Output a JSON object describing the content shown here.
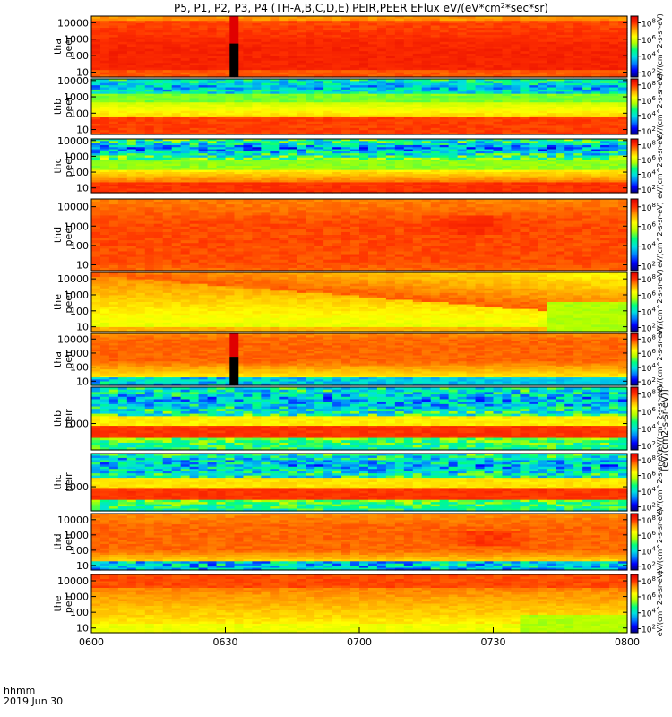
{
  "chart_data": {
    "type": "heatmap",
    "title": "P5, P1, P2, P3, P4 (TH-A,B,C,D,E) PEIR,PEER EFlux eV/(eV*cm2*sec*sr)",
    "title_parts": {
      "main": "P5, P1, P2, P3, P4 (TH-A,B,C,D,E) PEIR,PEER EFlux eV/(eV*cm",
      "sup": "2",
      "tail": "*sec*sr)"
    },
    "x_axis": {
      "label": "hhmm",
      "date": "2019 Jun 30",
      "ticks": [
        "0600",
        "0630",
        "0700",
        "0730",
        "0800"
      ],
      "range": [
        "06:00",
        "08:00"
      ]
    },
    "colorbar": {
      "units_label": "eV/(cm^2-s-sr-eV)",
      "outer_label": "[eV/(cm2-s-sr-eV)]",
      "ticks": [
        "10^2",
        "10^4",
        "10^6",
        "10^8"
      ],
      "exponents": [
        2,
        4,
        6,
        8
      ],
      "range_log10": [
        1.5,
        8.8
      ],
      "colormap": [
        "#000080",
        "#0000ff",
        "#0080ff",
        "#00e0e0",
        "#00ff80",
        "#b0ff00",
        "#ffff00",
        "#ffa000",
        "#ff3000",
        "#e00000"
      ]
    },
    "panels": [
      {
        "probe": "tha",
        "instrument": "peer",
        "label": [
          "tha",
          "peer"
        ],
        "yticks": [
          "10",
          "100",
          "1000",
          "10000"
        ],
        "ylog": [
          0.7,
          4.4
        ]
      },
      {
        "probe": "thb",
        "instrument": "peer",
        "label": [
          "thb",
          "peer"
        ],
        "yticks": [
          "10",
          "100",
          "1000",
          "10000"
        ],
        "ylog": [
          0.7,
          4.1
        ]
      },
      {
        "probe": "thc",
        "instrument": "peer",
        "label": [
          "thc",
          "peer"
        ],
        "yticks": [
          "10",
          "100",
          "1000",
          "10000"
        ],
        "ylog": [
          0.7,
          4.1
        ]
      },
      {
        "probe": "thd",
        "instrument": "peer",
        "label": [
          "thd",
          "peer"
        ],
        "yticks": [
          "10",
          "100",
          "1000",
          "10000"
        ],
        "ylog": [
          0.7,
          4.4
        ]
      },
      {
        "probe": "the",
        "instrument": "peer",
        "label": [
          "the",
          "peer"
        ],
        "yticks": [
          "10",
          "100",
          "1000",
          "10000"
        ],
        "ylog": [
          0.7,
          4.4
        ]
      },
      {
        "probe": "tha",
        "instrument": "peir",
        "label": [
          "tha",
          "peir"
        ],
        "yticks": [
          "10",
          "100",
          "1000",
          "10000"
        ],
        "ylog": [
          0.7,
          4.4
        ]
      },
      {
        "probe": "thb",
        "instrument": "peir",
        "label": [
          "thb",
          "peir"
        ],
        "yticks": [
          "1000"
        ],
        "ylog": [
          2.2,
          4.1
        ]
      },
      {
        "probe": "thc",
        "instrument": "peir",
        "label": [
          "thc",
          "peir"
        ],
        "yticks": [
          "1000"
        ],
        "ylog": [
          2.2,
          4.1
        ]
      },
      {
        "probe": "thd",
        "instrument": "peir",
        "label": [
          "thd",
          "peir"
        ],
        "yticks": [
          "10",
          "100",
          "1000",
          "10000"
        ],
        "ylog": [
          0.7,
          4.4
        ]
      },
      {
        "probe": "the",
        "instrument": "peir",
        "label": [
          "the",
          "peir"
        ],
        "yticks": [
          "10",
          "100",
          "1000",
          "10000"
        ],
        "ylog": [
          0.7,
          4.4
        ]
      }
    ],
    "features": {
      "data_gap_time": "06:31",
      "data_gap_panels": [
        "tha peer",
        "tha peir"
      ]
    }
  }
}
